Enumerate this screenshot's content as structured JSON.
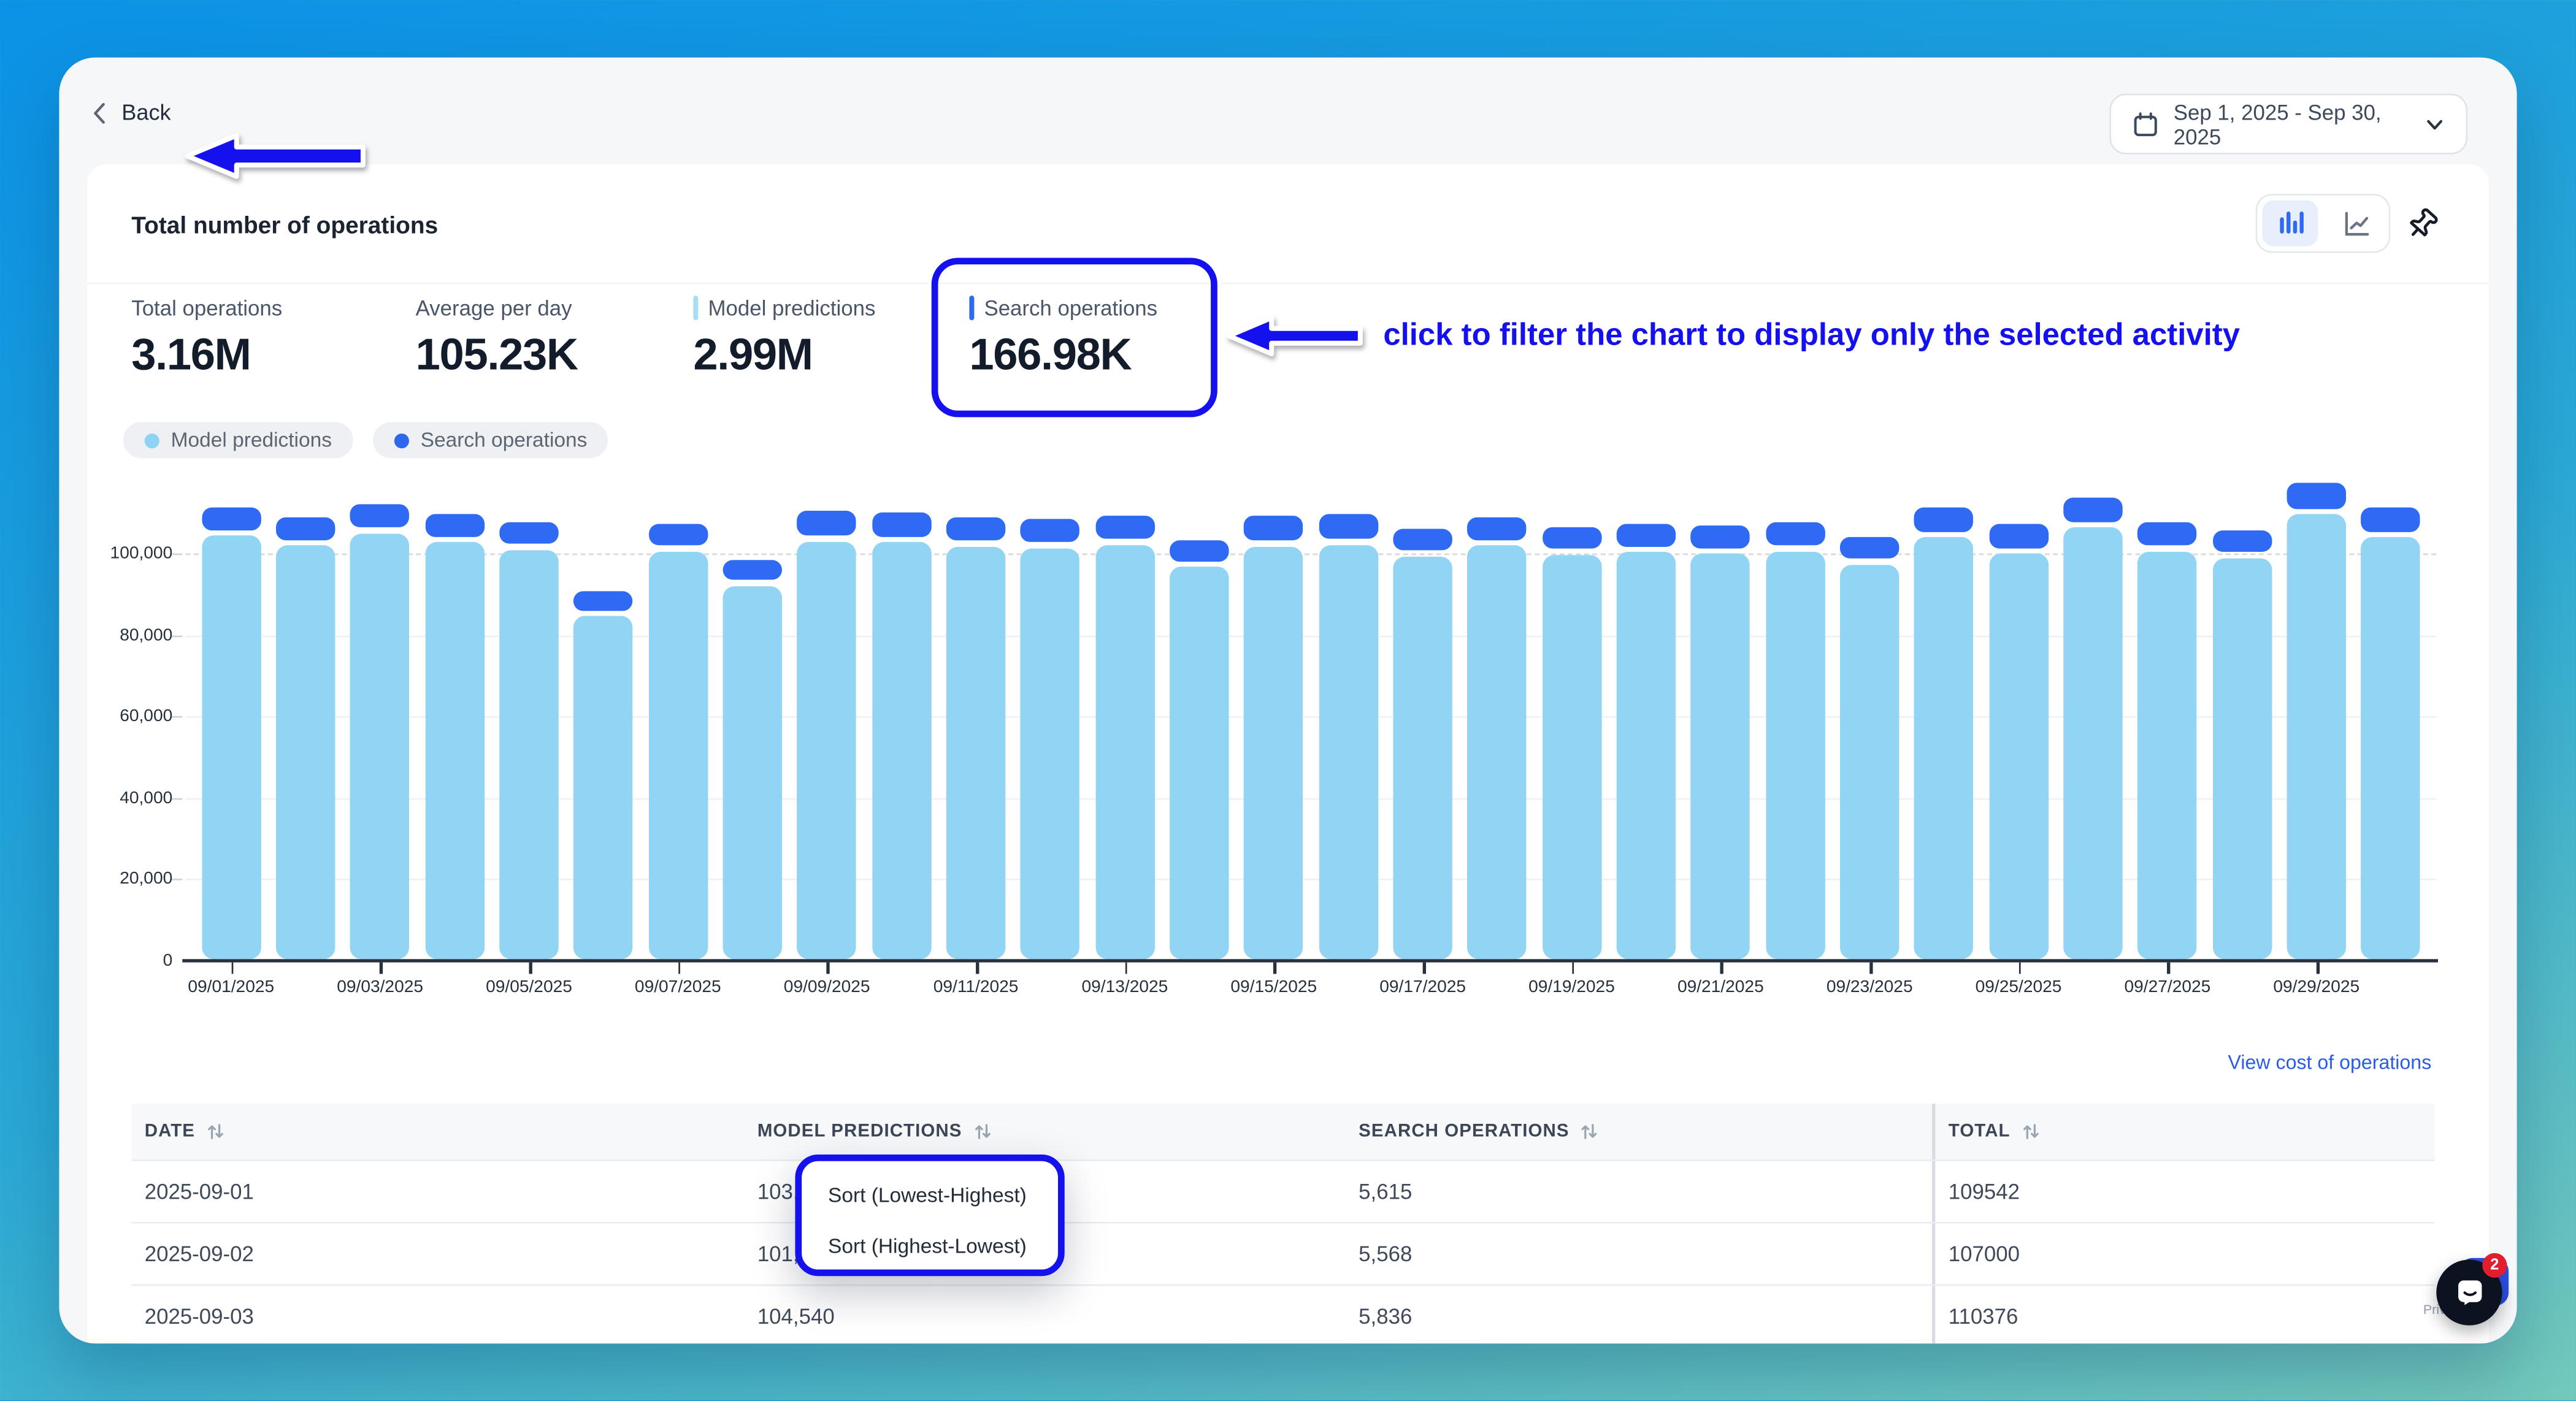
{
  "topbar": {
    "back_label": "Back",
    "date_range": "Sep 1, 2025 - Sep 30, 2025"
  },
  "card": {
    "title": "Total number of operations",
    "stats": [
      {
        "label": "Total operations",
        "value": "3.16M"
      },
      {
        "label": "Average per day",
        "value": "105.23K"
      },
      {
        "label": "Model predictions",
        "value": "2.99M",
        "marker_color": "#a8ddf8"
      },
      {
        "label": "Search operations",
        "value": "166.98K",
        "marker_color": "#2f6bf0"
      }
    ],
    "legend": [
      {
        "label": "Model predictions",
        "color": "#8fd3f4"
      },
      {
        "label": "Search operations",
        "color": "#2e67ee"
      }
    ],
    "view_cost_link": "View cost of operations"
  },
  "annotations": {
    "filter_note": "click to filter the chart to display only the selected activity"
  },
  "chart_data": {
    "type": "bar",
    "stacked": true,
    "title": "Total number of operations",
    "categories": [
      "09/01/2025",
      "09/02/2025",
      "09/03/2025",
      "09/04/2025",
      "09/05/2025",
      "09/06/2025",
      "09/07/2025",
      "09/08/2025",
      "09/09/2025",
      "09/10/2025",
      "09/11/2025",
      "09/12/2025",
      "09/13/2025",
      "09/14/2025",
      "09/15/2025",
      "09/16/2025",
      "09/17/2025",
      "09/18/2025",
      "09/19/2025",
      "09/20/2025",
      "09/21/2025",
      "09/22/2025",
      "09/23/2025",
      "09/24/2025",
      "09/25/2025",
      "09/26/2025",
      "09/27/2025",
      "09/28/2025",
      "09/29/2025",
      "09/30/2025"
    ],
    "series": [
      {
        "name": "Model predictions",
        "color": "#92d4f4",
        "values": [
          103927,
          101432,
          104540,
          102300,
          100400,
          84200,
          100000,
          91600,
          102600,
          102300,
          101300,
          100900,
          101700,
          96300,
          101300,
          101800,
          98900,
          101600,
          99300,
          99900,
          99400,
          100000,
          96800,
          103600,
          99500,
          106000,
          100000,
          98500,
          109200,
          103600
        ]
      },
      {
        "name": "Search operations",
        "color": "#2f6af4",
        "values": [
          5615,
          5568,
          5836,
          5700,
          5600,
          4600,
          5500,
          5000,
          5900,
          6000,
          5600,
          5800,
          5700,
          5300,
          6000,
          6100,
          5400,
          5600,
          5500,
          5600,
          5800,
          5700,
          5400,
          5800,
          5900,
          6000,
          5700,
          5400,
          6200,
          6000
        ]
      }
    ],
    "y_ticks": [
      0,
      20000,
      40000,
      60000,
      80000,
      100000
    ],
    "y_tick_labels": [
      "0",
      "20,000",
      "40,000",
      "60,000",
      "80,000",
      "100,000"
    ],
    "dashed_gridline_at": 100000,
    "x_label_every": 2,
    "ylim": [
      0,
      118000
    ],
    "grid": true,
    "legend_position": "top-left"
  },
  "table": {
    "columns": [
      "DATE",
      "MODEL PREDICTIONS",
      "SEARCH OPERATIONS",
      "TOTAL"
    ],
    "rows": [
      {
        "date": "2025-09-01",
        "model": "103,927",
        "search": "5,615",
        "total": "109542"
      },
      {
        "date": "2025-09-02",
        "model": "101,432",
        "search": "5,568",
        "total": "107000"
      },
      {
        "date": "2025-09-03",
        "model": "104,540",
        "search": "5,836",
        "total": "110376"
      }
    ]
  },
  "sort_menu": {
    "items": [
      "Sort (Lowest-Highest)",
      "Sort (Highest-Lowest)"
    ]
  },
  "chat": {
    "badge": "2",
    "privacy_text": "Privacy - Te"
  }
}
